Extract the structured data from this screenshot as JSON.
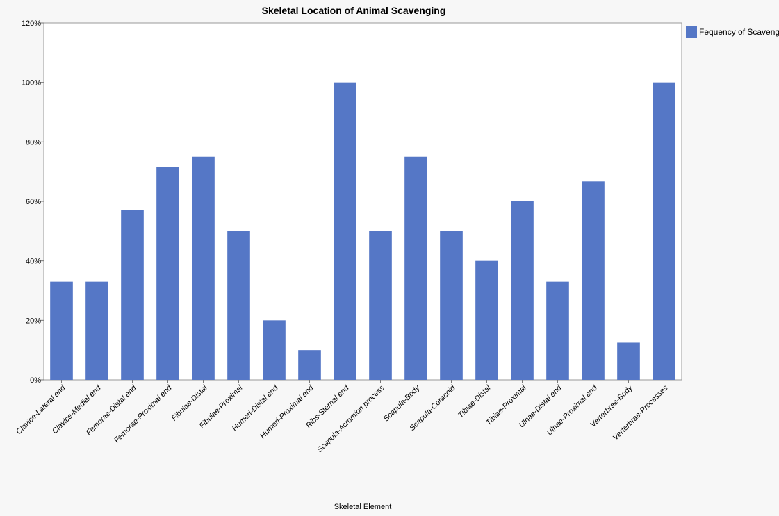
{
  "chart_data": {
    "type": "bar",
    "title": "Skeletal Location of Animal Scavenging",
    "xlabel": "Skeletal Element",
    "ylabel": "",
    "ylim": [
      0,
      120
    ],
    "y_ticks": [
      0,
      20,
      40,
      60,
      80,
      100,
      120
    ],
    "y_tick_labels": [
      "0%",
      "20%",
      "40%",
      "60%",
      "80%",
      "100%",
      "120%"
    ],
    "grid": false,
    "legend_position": "top-right",
    "categories": [
      "Clavice-Lateral end",
      "Clavice-Medial end",
      "Femorae-Distal end",
      "Femorae-Proximal end",
      "Fibulae-Distal",
      "Fibulae-Proximal",
      "Humeri-Distal end",
      "Humeri-Proximal end",
      "Ribs-Sternal end",
      "Scapula-Acromion process",
      "Scapula-Body",
      "Scapula-Coracoid",
      "Tibiae-Distal",
      "Tibiae-Proximal",
      "Ulnae-Distal end",
      "Ulnae-Proximal end",
      "Verterbrae-Body",
      "Verterbrae-Processes"
    ],
    "series": [
      {
        "name": "Fequency of Scavenging",
        "color": "#5577c6",
        "values": [
          33,
          33,
          57,
          71.5,
          75,
          50,
          20,
          10,
          100,
          50,
          75,
          50,
          40,
          60,
          33,
          66.7,
          12.5,
          100
        ]
      }
    ]
  }
}
